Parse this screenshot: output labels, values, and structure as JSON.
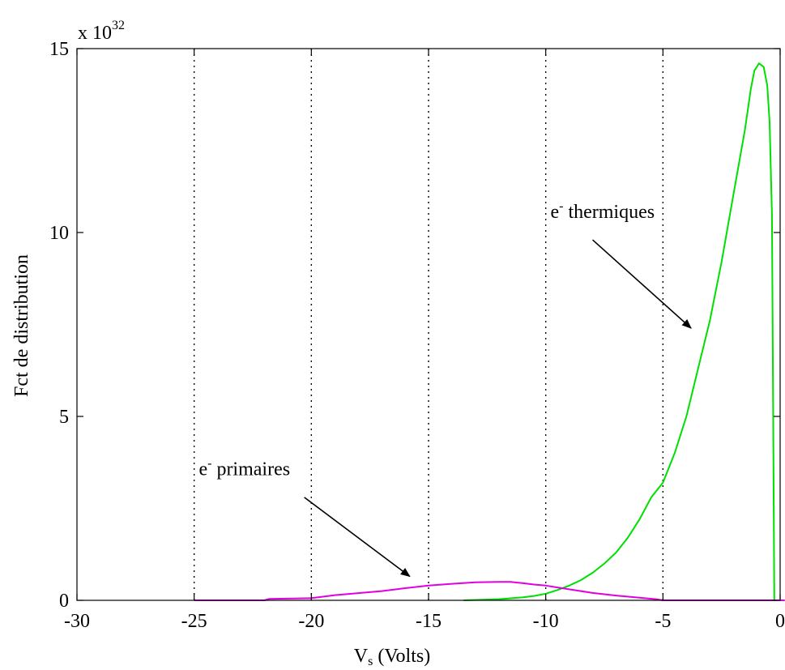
{
  "chart_data": {
    "type": "line",
    "xlabel_main": "V",
    "xlabel_sub": "s",
    "xlabel_rest": " (Volts)",
    "ylabel": "Fct de distribution",
    "y_multiplier_base": "x 10",
    "y_multiplier_exp": "32",
    "xlim": [
      -30,
      0
    ],
    "ylim": [
      0,
      15
    ],
    "x_ticks": [
      -30,
      -25,
      -20,
      -15,
      -10,
      -5,
      0
    ],
    "y_ticks": [
      0,
      5,
      10,
      15
    ],
    "x_tick_labels": [
      "-30",
      "-25",
      "-20",
      "-15",
      "-10",
      "-5",
      "0"
    ],
    "y_tick_labels": [
      "0",
      "5",
      "10",
      "15"
    ],
    "grid": "vertical-dotted",
    "vertical_gridlines": [
      -25,
      -20,
      -15,
      -10,
      -5
    ],
    "series": [
      {
        "color": "#00e000",
        "x": [
          -13.5,
          -12,
          -11,
          -10.5,
          -10,
          -9.5,
          -9,
          -8.5,
          -8,
          -7.5,
          -7,
          -6.5,
          -6,
          -5.5,
          -5,
          -4.5,
          -4,
          -3.5,
          -3,
          -2.5,
          -2,
          -1.5,
          -1.25,
          -1.1,
          -0.9,
          -0.7,
          -0.55,
          -0.45,
          -0.35,
          -0.25,
          0.15
        ],
        "y": [
          0,
          0.03,
          0.08,
          0.12,
          0.18,
          0.28,
          0.4,
          0.55,
          0.75,
          1.0,
          1.3,
          1.7,
          2.2,
          2.8,
          3.2,
          4.0,
          5.0,
          6.3,
          7.6,
          9.2,
          11.0,
          12.8,
          13.9,
          14.4,
          14.6,
          14.5,
          14.0,
          13.0,
          10.5,
          0,
          0
        ]
      },
      {
        "color": "#e000e0",
        "x": [
          -25,
          -22,
          -21.8,
          -20,
          -19.5,
          -19,
          -17,
          -16,
          -15,
          -14,
          -13,
          -12,
          -11.5,
          -11,
          -10.5,
          -10,
          -9.5,
          -9,
          -8.5,
          -8,
          -7,
          -6,
          -5.3,
          -5,
          0.2
        ],
        "y": [
          0,
          0,
          0.04,
          0.06,
          0.1,
          0.14,
          0.25,
          0.33,
          0.4,
          0.45,
          0.49,
          0.5,
          0.5,
          0.47,
          0.43,
          0.4,
          0.35,
          0.3,
          0.25,
          0.2,
          0.13,
          0.07,
          0.03,
          0,
          0
        ]
      }
    ],
    "annotations": [
      {
        "sup": "-",
        "label": " thermiques",
        "base": "e",
        "text_pos": [
          -9.8,
          10.4
        ],
        "arrow_from": [
          -8.0,
          9.8
        ],
        "arrow_to": [
          -3.8,
          7.4
        ]
      },
      {
        "sup": "-",
        "label": " primaires",
        "base": "e",
        "text_pos": [
          -24.8,
          3.4
        ],
        "arrow_from": [
          -20.3,
          2.8
        ],
        "arrow_to": [
          -15.8,
          0.65
        ]
      }
    ]
  }
}
